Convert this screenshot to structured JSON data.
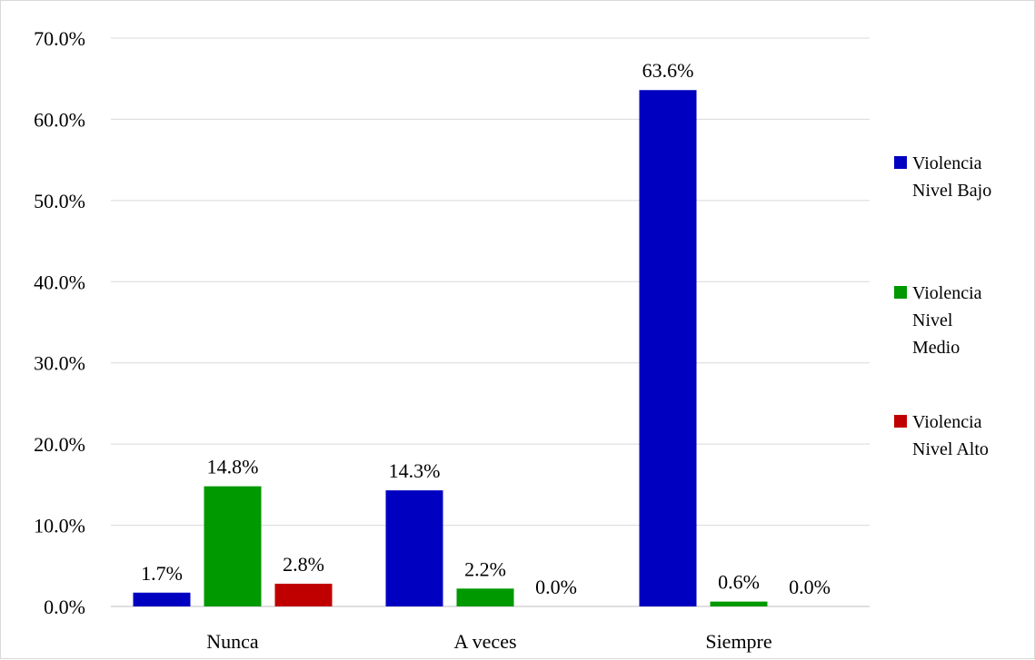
{
  "chart_data": {
    "type": "bar",
    "title": "",
    "xlabel": "",
    "ylabel": "",
    "categories": [
      "Nunca",
      "A veces",
      "Siempre"
    ],
    "series": [
      {
        "name": "Violencia Nivel Bajo",
        "color": "#0000c0",
        "values": [
          1.7,
          14.3,
          63.6
        ],
        "labels": [
          "1.7%",
          "14.3%",
          "63.6%"
        ]
      },
      {
        "name": "Violencia Nivel Medio",
        "color": "#009900",
        "values": [
          14.8,
          2.2,
          0.6
        ],
        "labels": [
          "14.8%",
          "2.2%",
          "0.6%"
        ]
      },
      {
        "name": "Violencia Nivel Alto",
        "color": "#c00000",
        "values": [
          2.8,
          0.0,
          0.0
        ],
        "labels": [
          "2.8%",
          "0.0%",
          "0.0%"
        ]
      }
    ],
    "ylim": [
      0,
      70
    ],
    "yticks": [
      0,
      10,
      20,
      30,
      40,
      50,
      60,
      70
    ],
    "ytick_labels": [
      "0.0%",
      "10.0%",
      "20.0%",
      "30.0%",
      "40.0%",
      "50.0%",
      "60.0%",
      "70.0%"
    ],
    "grid": true,
    "legend_position": "right",
    "legend_lines": [
      [
        "Violencia",
        "Nivel Bajo"
      ],
      [
        "Violencia",
        "Nivel",
        "Medio"
      ],
      [
        "Violencia",
        "Nivel Alto"
      ]
    ]
  }
}
